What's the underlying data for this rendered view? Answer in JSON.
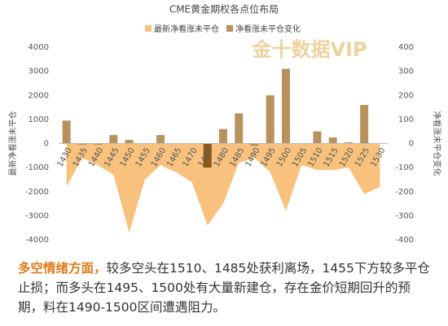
{
  "chart_data": {
    "type": "bar-area",
    "title": "CME黄金期权各点位布局",
    "watermark": "金十数据VIP",
    "y_label": "最新净看涨未平仓",
    "y2_label": "净看涨未平仓变化",
    "categories": [
      "1430",
      "1435",
      "1440",
      "1445",
      "1450",
      "1455",
      "1460",
      "1465",
      "1470",
      "1475",
      "1480",
      "1485",
      "1490",
      "1495",
      "1500",
      "1505",
      "1510",
      "1515",
      "1520",
      "1525",
      "1530"
    ],
    "series": [
      {
        "name": "最新净看涨未平仓",
        "color": "#f8c27e",
        "kind": "area",
        "values": [
          -1800,
          -600,
          -900,
          -1300,
          -3700,
          -1500,
          -900,
          -1200,
          -1600,
          -3400,
          -2500,
          -800,
          -600,
          -1200,
          -2800,
          -900,
          -1100,
          -1100,
          -1000,
          -2100,
          -1800
        ]
      },
      {
        "name": "净看涨未平仓变化",
        "color": "#b8915c",
        "kind": "bar",
        "axis": "y2",
        "highlight_color": "#8a5a1c",
        "highlight_index": 9,
        "values": [
          95,
          -5,
          -5,
          35,
          15,
          0,
          35,
          0,
          0,
          -100,
          60,
          125,
          -10,
          200,
          310,
          0,
          50,
          25,
          5,
          160,
          0
        ]
      }
    ],
    "ylim": [
      -4000,
      4000
    ],
    "yticks": [
      -4000,
      -3000,
      -2000,
      -1000,
      0,
      1000,
      2000,
      3000,
      4000
    ],
    "y2lim": [
      -400,
      400
    ],
    "y2ticks": [
      -400,
      -300,
      -200,
      -100,
      0,
      100,
      200,
      300,
      400
    ]
  },
  "text": {
    "highlight": "多空情绪方面，",
    "body": "较多空头在1510、1485处获利离场，1455下方较多平仓止损；而多头在1495、1500处有大量新建仓，存在金价短期回升的预期，料在1490-1500区间遭遇阻力。"
  }
}
